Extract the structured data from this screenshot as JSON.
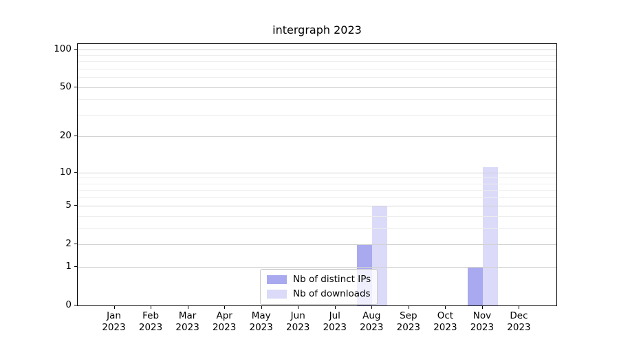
{
  "chart_data": {
    "type": "bar",
    "title": "intergraph 2023",
    "categories": [
      "Jan",
      "Feb",
      "Mar",
      "Apr",
      "May",
      "Jun",
      "Jul",
      "Aug",
      "Sep",
      "Oct",
      "Nov",
      "Dec"
    ],
    "year_label": "2023",
    "series": [
      {
        "name": "Nb of distinct IPs",
        "color": "#a9a9ef",
        "values": [
          0,
          0,
          0,
          0,
          0,
          0,
          0,
          2,
          0,
          0,
          1,
          0
        ]
      },
      {
        "name": "Nb of downloads",
        "color": "#dbdaf8",
        "values": [
          0,
          0,
          0,
          0,
          0,
          0,
          0,
          5,
          0,
          0,
          11,
          0
        ]
      }
    ],
    "yscale": "log1p",
    "ylim": [
      0,
      110
    ],
    "yticks_major": [
      0,
      1,
      2,
      5,
      10,
      20,
      50,
      100
    ],
    "yticks_minor": [
      3,
      4,
      6,
      7,
      8,
      9,
      30,
      40,
      60,
      70,
      80,
      90
    ],
    "grid": "horizontal",
    "legend_position": "lower-center",
    "axis_color": "#000000",
    "grid_major_color": "#d2d2d2",
    "grid_minor_color": "#ededed"
  }
}
